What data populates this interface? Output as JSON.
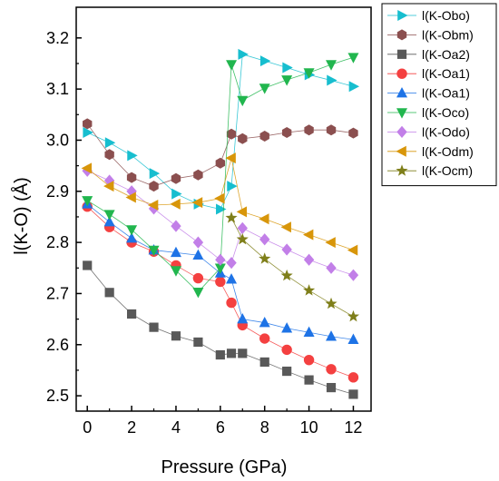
{
  "chart_data": {
    "type": "scatter",
    "xlabel": "Pressure (GPa)",
    "ylabel": "l(K-O) (Å)",
    "xlim": [
      -0.5,
      12.8
    ],
    "ylim": [
      2.47,
      3.26
    ],
    "xticks": [
      0,
      2,
      4,
      6,
      8,
      10,
      12
    ],
    "yticks": [
      2.5,
      2.6,
      2.7,
      2.8,
      2.9,
      3.0,
      3.1,
      3.2
    ],
    "ytick_format": 1,
    "grid": false,
    "legend_position": "outside-top-right",
    "series": [
      {
        "name": "l(K-Obo)",
        "color": "#17BECF",
        "marker": "triangle-right",
        "x": [
          0,
          1,
          2,
          3,
          4,
          5,
          6,
          6.5,
          7,
          8,
          9,
          10,
          11,
          12
        ],
        "y": [
          3.015,
          2.995,
          2.97,
          2.935,
          2.895,
          2.875,
          2.865,
          2.91,
          3.168,
          3.155,
          3.142,
          3.128,
          3.117,
          3.105
        ]
      },
      {
        "name": "l(K-Obm)",
        "color": "#8B4F4F",
        "marker": "hexagon",
        "x": [
          0,
          1,
          2,
          3,
          4,
          5,
          6,
          6.5,
          7,
          8,
          9,
          10,
          11,
          12
        ],
        "y": [
          3.032,
          2.972,
          2.927,
          2.91,
          2.925,
          2.932,
          2.955,
          3.012,
          3.003,
          3.008,
          3.015,
          3.02,
          3.02,
          3.014
        ]
      },
      {
        "name": "l(K-Oa2)",
        "color": "#595959",
        "marker": "square",
        "x": [
          0,
          1,
          2,
          3,
          4,
          5,
          6,
          6.5,
          7,
          8,
          9,
          10,
          11,
          12
        ],
        "y": [
          2.755,
          2.702,
          2.66,
          2.634,
          2.617,
          2.605,
          2.58,
          2.583,
          2.583,
          2.566,
          2.548,
          2.531,
          2.516,
          2.503
        ]
      },
      {
        "name": "l(K-Oa1)",
        "color": "#F44040",
        "marker": "circle",
        "x": [
          0,
          1,
          2,
          3,
          4,
          5,
          6,
          6.5,
          7,
          8,
          9,
          10,
          11,
          12
        ],
        "y": [
          2.87,
          2.83,
          2.8,
          2.782,
          2.755,
          2.73,
          2.723,
          2.682,
          2.638,
          2.612,
          2.59,
          2.57,
          2.552,
          2.536
        ]
      },
      {
        "name": "l(K-Oa1)",
        "color": "#1E73E6",
        "marker": "triangle-up",
        "x": [
          0,
          1,
          2,
          3,
          4,
          5,
          6,
          6.5,
          7,
          8,
          9,
          10,
          11,
          12
        ],
        "y": [
          2.875,
          2.84,
          2.808,
          2.785,
          2.78,
          2.775,
          2.74,
          2.728,
          2.65,
          2.643,
          2.632,
          2.624,
          2.616,
          2.61
        ]
      },
      {
        "name": "l(K-Oco)",
        "color": "#21B64E",
        "marker": "triangle-down",
        "x": [
          0,
          1,
          2,
          3,
          4,
          5,
          6,
          6.5,
          7,
          8,
          9,
          10,
          11,
          12
        ],
        "y": [
          2.882,
          2.855,
          2.825,
          2.785,
          2.745,
          2.703,
          2.75,
          3.148,
          3.078,
          3.102,
          3.118,
          3.132,
          3.148,
          3.162
        ]
      },
      {
        "name": "l(K-Odo)",
        "color": "#C27FE8",
        "marker": "diamond",
        "x": [
          0,
          1,
          2,
          3,
          4,
          5,
          6,
          6.5,
          7,
          8,
          9,
          10,
          11,
          12
        ],
        "y": [
          2.94,
          2.921,
          2.9,
          2.866,
          2.832,
          2.8,
          2.766,
          2.76,
          2.828,
          2.806,
          2.786,
          2.766,
          2.75,
          2.736
        ]
      },
      {
        "name": "l(K-Odm)",
        "color": "#D8960A",
        "marker": "triangle-left",
        "x": [
          0,
          1,
          2,
          3,
          4,
          5,
          6,
          6.5,
          7,
          8,
          9,
          10,
          11,
          12
        ],
        "y": [
          2.945,
          2.91,
          2.888,
          2.873,
          2.875,
          2.878,
          2.886,
          2.965,
          2.86,
          2.846,
          2.83,
          2.815,
          2.8,
          2.785
        ]
      },
      {
        "name": "l(K-Ocm)",
        "color": "#7F7F1A",
        "marker": "star",
        "x": [
          6.5,
          7,
          8,
          9,
          10,
          11,
          12
        ],
        "y": [
          2.848,
          2.806,
          2.768,
          2.735,
          2.706,
          2.68,
          2.655
        ]
      }
    ]
  }
}
